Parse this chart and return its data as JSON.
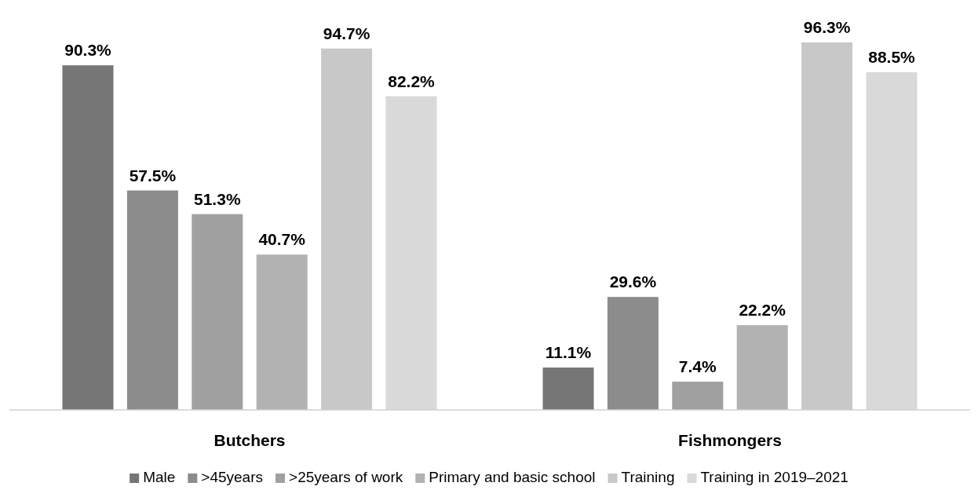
{
  "chart_data": {
    "type": "bar",
    "categories": [
      "Butchers",
      "Fishmongers"
    ],
    "legend": "bottom",
    "series": [
      {
        "name": "Male",
        "color": "#767676",
        "values": [
          90.3,
          11.1
        ],
        "value_labels": [
          "90.3%",
          "11.1%"
        ]
      },
      {
        "name": ">45years",
        "color": "#8c8c8c",
        "values": [
          57.5,
          29.6
        ],
        "value_labels": [
          "57.5%",
          "29.6%"
        ]
      },
      {
        "name": ">25years of work",
        "color": "#a0a0a0",
        "values": [
          51.3,
          7.4
        ],
        "value_labels": [
          "51.3%",
          "7.4%"
        ]
      },
      {
        "name": "Primary and basic school",
        "color": "#b2b2b2",
        "values": [
          40.7,
          22.2
        ],
        "value_labels": [
          "40.7%",
          "22.2%"
        ]
      },
      {
        "name": "Training",
        "color": "#c8c8c8",
        "values": [
          94.7,
          96.3
        ],
        "value_labels": [
          "94.7%",
          "96.3%"
        ]
      },
      {
        "name": "Training in 2019–2021",
        "color": "#d9d9d9",
        "values": [
          82.2,
          88.5
        ],
        "value_labels": [
          "82.2%",
          "88.5%"
        ]
      }
    ]
  }
}
